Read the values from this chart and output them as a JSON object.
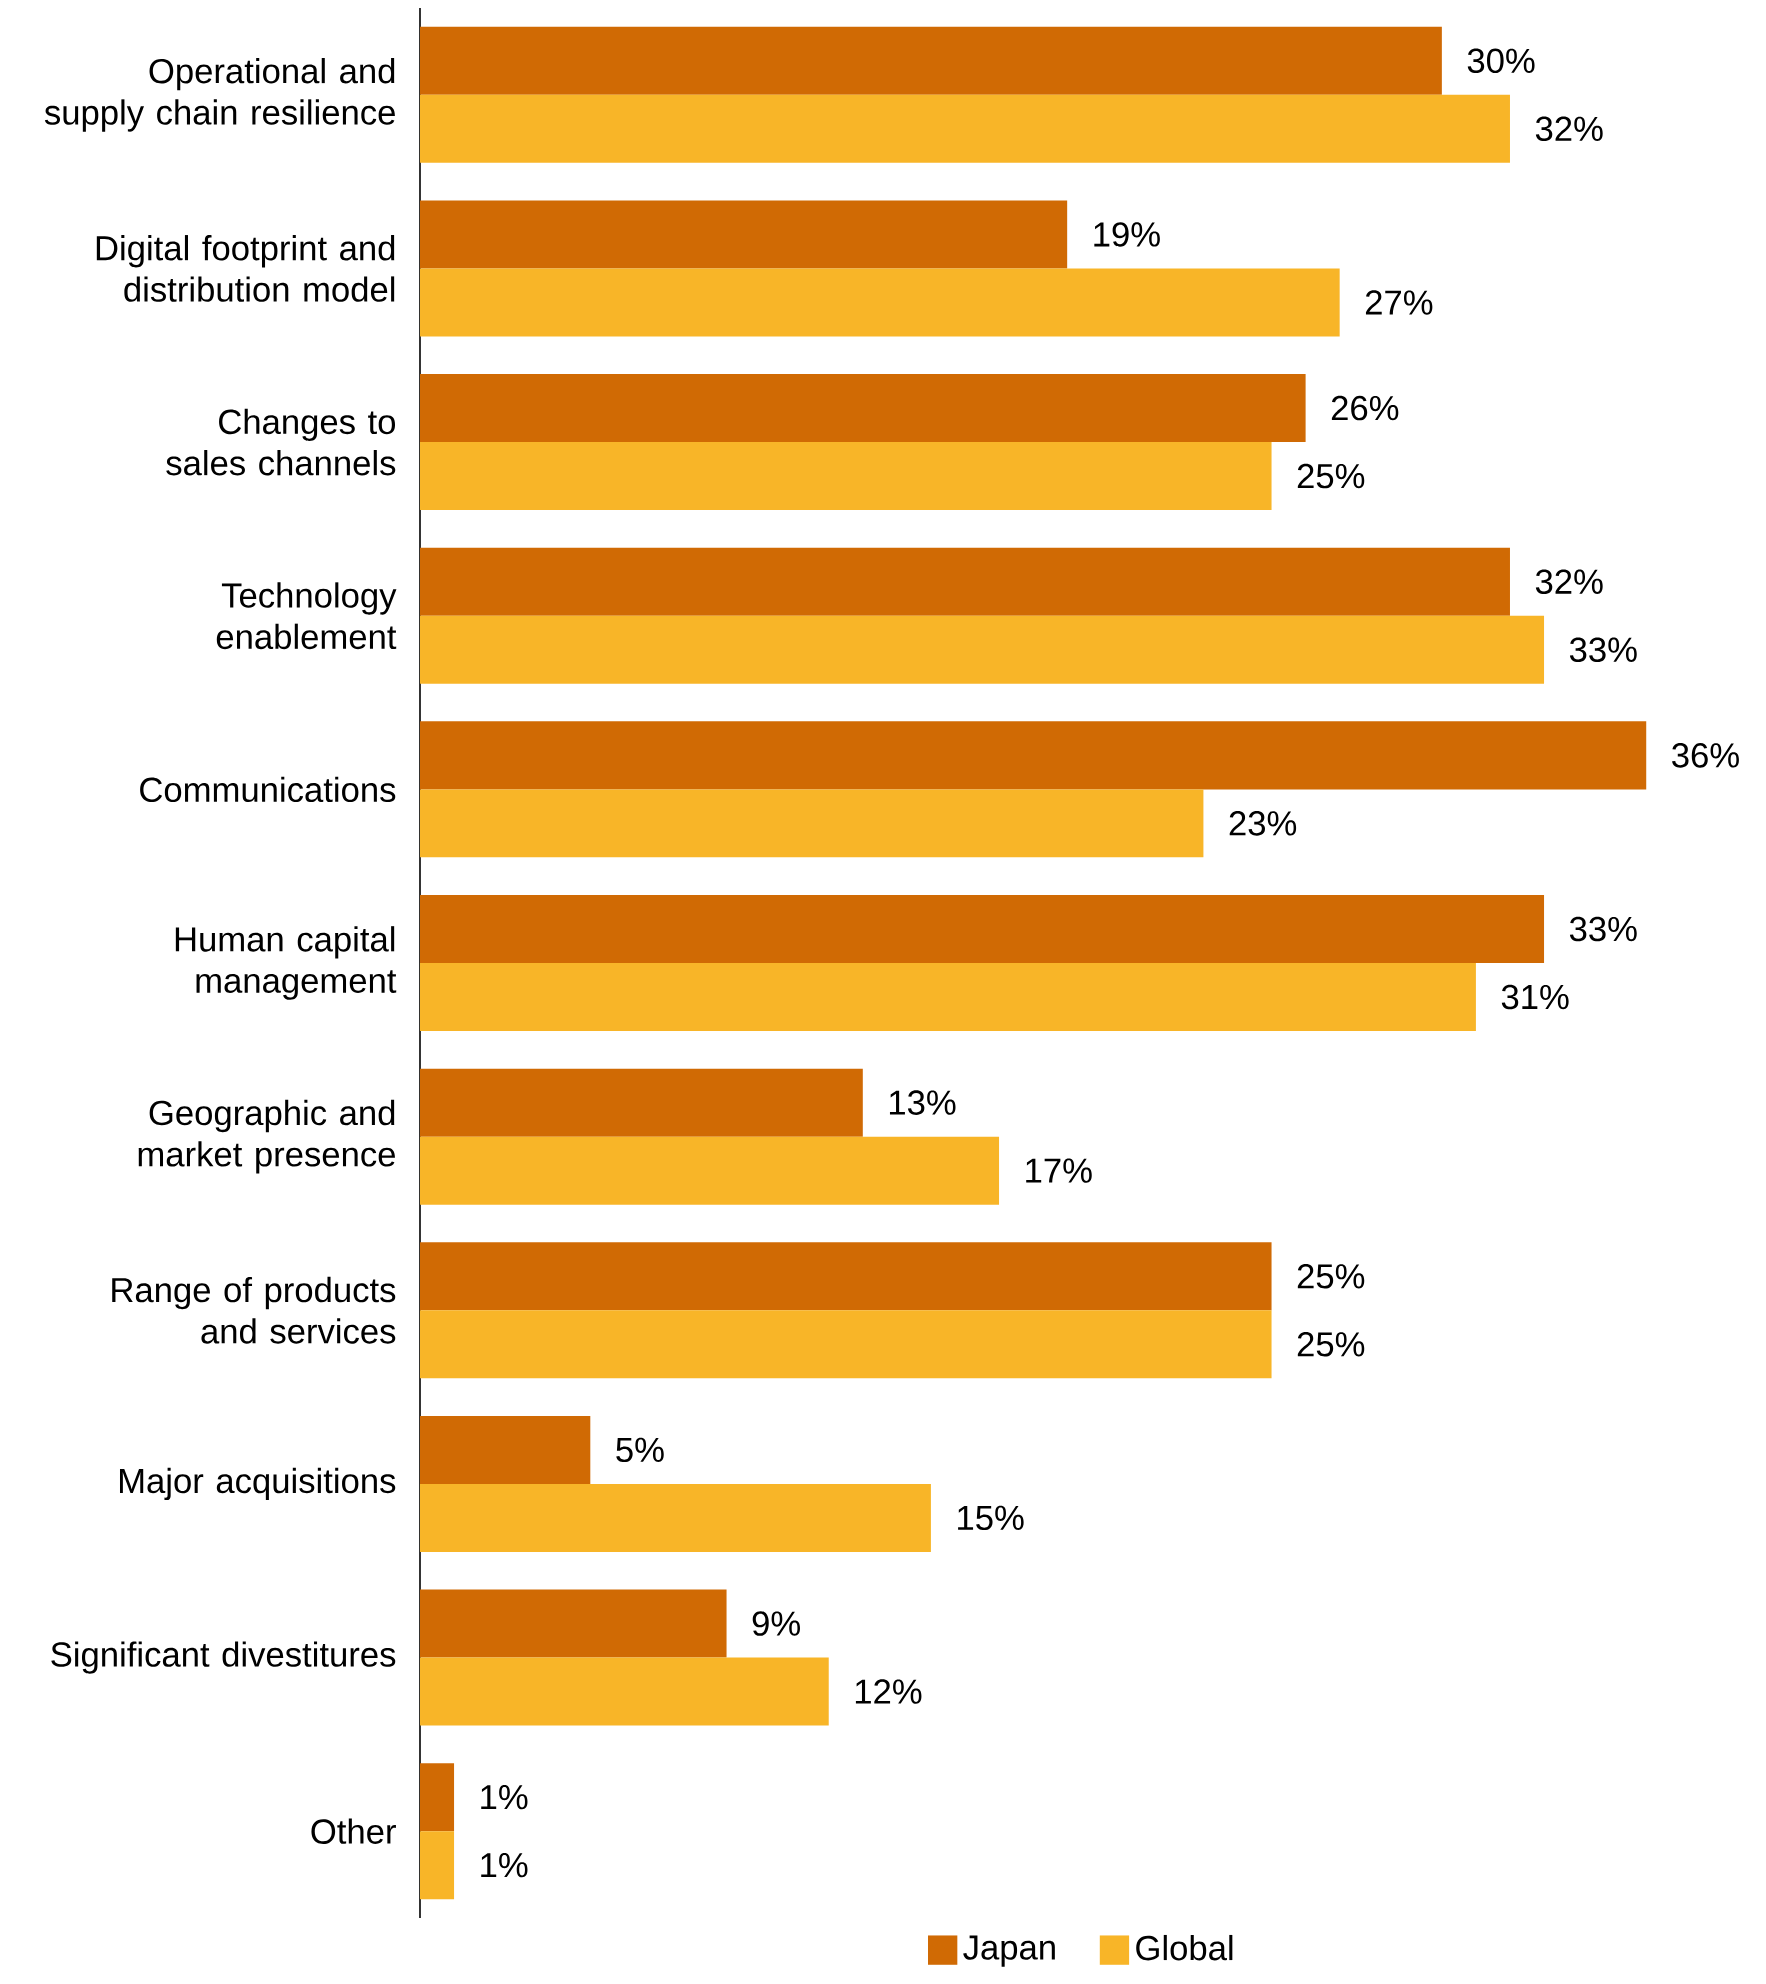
{
  "chart_data": {
    "type": "bar",
    "orientation": "horizontal",
    "categories": [
      "Operational and supply chain resilience",
      "Digital footprint and distribution model",
      "Changes to sales channels",
      "Technology enablement",
      "Communications",
      "Human capital management",
      "Geographic and market presence",
      "Range of products and services",
      "Major acquisitions",
      "Significant divestitures",
      "Other"
    ],
    "series": [
      {
        "name": "Japan",
        "color": "#d06a04",
        "values": [
          30,
          19,
          26,
          32,
          36,
          33,
          13,
          25,
          5,
          9,
          1
        ],
        "value_labels": [
          "30%",
          "19%",
          "26%",
          "32%",
          "36%",
          "33%",
          "13%",
          "25%",
          "5%",
          "9%",
          "1%"
        ]
      },
      {
        "name": "Global",
        "color": "#f8b528",
        "values": [
          32,
          27,
          25,
          33,
          23,
          31,
          17,
          25,
          15,
          12,
          1
        ],
        "value_labels": [
          "32%",
          "27%",
          "25%",
          "33%",
          "23%",
          "31%",
          "17%",
          "25%",
          "15%",
          "12%",
          "1%"
        ]
      }
    ],
    "legend": "bottom"
  }
}
